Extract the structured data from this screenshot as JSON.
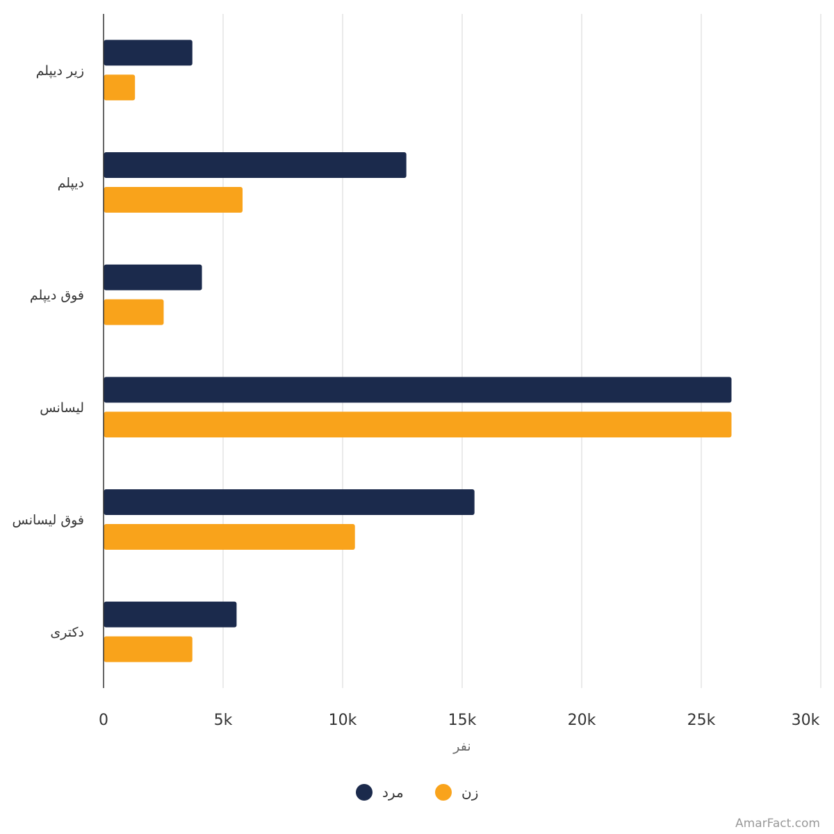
{
  "chart_data": {
    "type": "bar",
    "orientation": "horizontal",
    "categories": [
      "زیر دیپلم",
      "دیپلم",
      "فوق دیپلم",
      "لیسانس",
      "فوق لیسانس",
      "دکتری"
    ],
    "series": [
      {
        "name": "مرد",
        "color": "#1b2a4c",
        "values": [
          3700,
          12650,
          4100,
          26250,
          15500,
          5550
        ]
      },
      {
        "name": "زن",
        "color": "#f9a31b",
        "values": [
          1300,
          5800,
          2500,
          26250,
          10500,
          3700
        ]
      }
    ],
    "xlabel": "نفر",
    "ylabel": "",
    "xlim": [
      0,
      30000
    ],
    "ticks": [
      0,
      5000,
      10000,
      15000,
      20000,
      25000,
      30000
    ],
    "tick_labels": [
      "0",
      "5k",
      "10k",
      "15k",
      "20k",
      "25k",
      "30k"
    ],
    "grid": true,
    "legend_position": "bottom-center"
  },
  "credit": "AmarFact.com"
}
